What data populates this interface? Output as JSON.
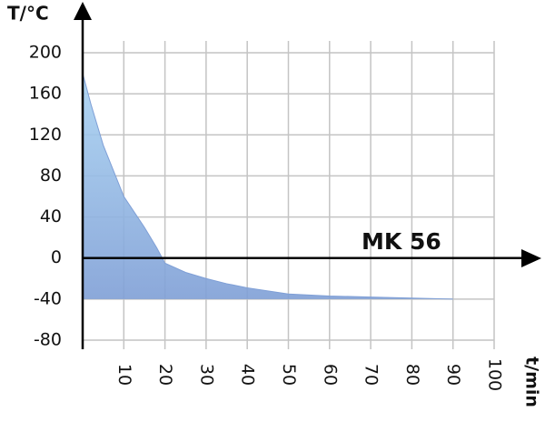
{
  "chart_data": {
    "type": "area",
    "y_label": "T/°C",
    "x_label": "t/min",
    "annotation": "MK 56",
    "x": [
      0,
      2,
      5,
      8,
      10,
      12,
      15,
      18,
      20,
      25,
      30,
      35,
      40,
      50,
      60,
      70,
      80,
      90
    ],
    "values": [
      180,
      150,
      110,
      80,
      60,
      48,
      30,
      10,
      -5,
      -14,
      -20,
      -25,
      -29,
      -35,
      -37,
      -38,
      -39,
      -40
    ],
    "color": "#7f9fd6",
    "xlim": [
      0,
      100
    ],
    "xticks": [
      10,
      20,
      30,
      40,
      50,
      60,
      70,
      80,
      90,
      100
    ],
    "ylim": [
      -80,
      200
    ],
    "yticks": [
      -80,
      -40,
      0,
      40,
      80,
      120,
      160,
      200
    ],
    "grid": true
  }
}
